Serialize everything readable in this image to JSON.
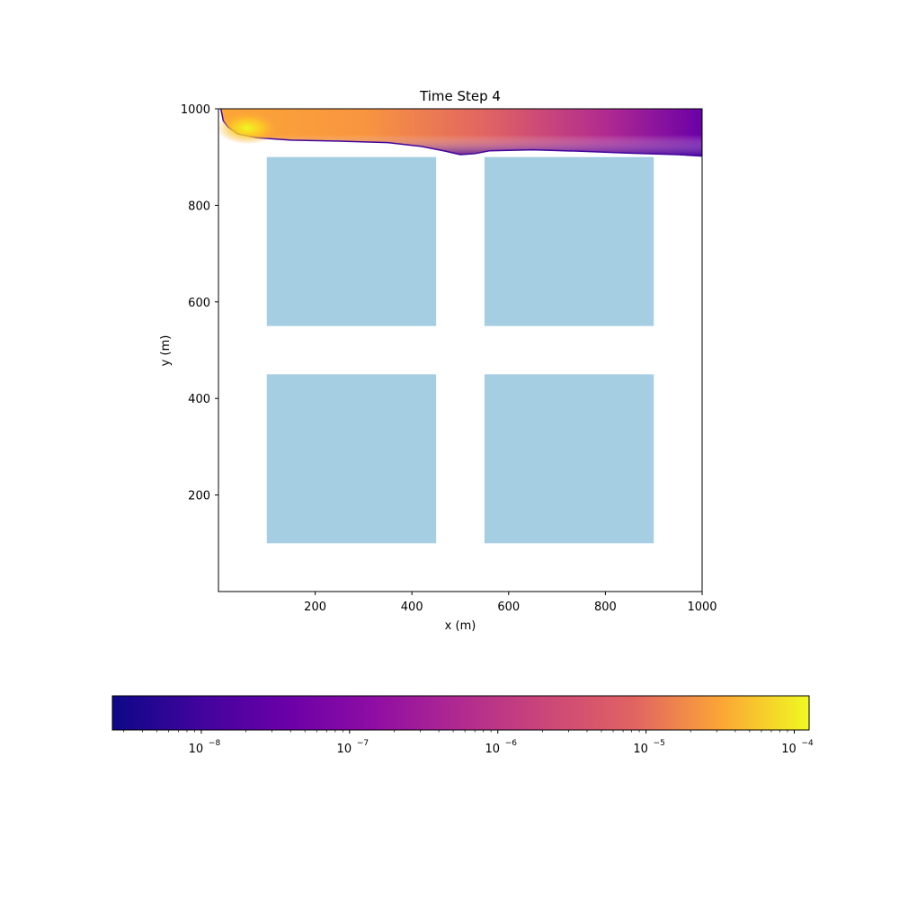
{
  "chart_data": {
    "type": "heatmap",
    "title": "Time Step 4",
    "xlabel": "x (m)",
    "ylabel": "y (m)",
    "xlim": [
      0,
      1000
    ],
    "ylim": [
      0,
      1000
    ],
    "xticks": [
      200,
      400,
      600,
      800,
      1000
    ],
    "yticks": [
      200,
      400,
      600,
      800,
      1000
    ],
    "xtick_labels": [
      "200",
      "400",
      "600",
      "800",
      "1000"
    ],
    "ytick_labels": [
      "200",
      "400",
      "600",
      "800",
      "1000"
    ],
    "obstacle_color": "#a6cee3",
    "obstacles": [
      {
        "x0": 100,
        "x1": 450,
        "y0": 100,
        "y1": 450
      },
      {
        "x0": 550,
        "x1": 900,
        "y0": 100,
        "y1": 450
      },
      {
        "x0": 100,
        "x1": 450,
        "y0": 550,
        "y1": 900
      },
      {
        "x0": 550,
        "x1": 900,
        "y0": 550,
        "y1": 900
      }
    ],
    "plume": {
      "source": [
        60,
        960
      ],
      "colormap": "plasma",
      "lower_edge": [
        [
          5,
          1000
        ],
        [
          10,
          975
        ],
        [
          20,
          962
        ],
        [
          40,
          948
        ],
        [
          80,
          940
        ],
        [
          150,
          935
        ],
        [
          250,
          933
        ],
        [
          350,
          930
        ],
        [
          420,
          922
        ],
        [
          470,
          912
        ],
        [
          500,
          905
        ],
        [
          530,
          907
        ],
        [
          560,
          913
        ],
        [
          650,
          915
        ],
        [
          750,
          912
        ],
        [
          850,
          908
        ],
        [
          950,
          905
        ],
        [
          1000,
          902
        ]
      ]
    },
    "colorbar": {
      "scale": "log",
      "vmin_exp": -8.6,
      "vmax_exp": -3.9,
      "ticks": [
        -8,
        -7,
        -6,
        -5,
        -4
      ],
      "tick_labels": [
        "10",
        "10",
        "10",
        "10",
        "10"
      ],
      "tick_exponents": [
        "−8",
        "−7",
        "−6",
        "−5",
        "−4"
      ]
    }
  }
}
